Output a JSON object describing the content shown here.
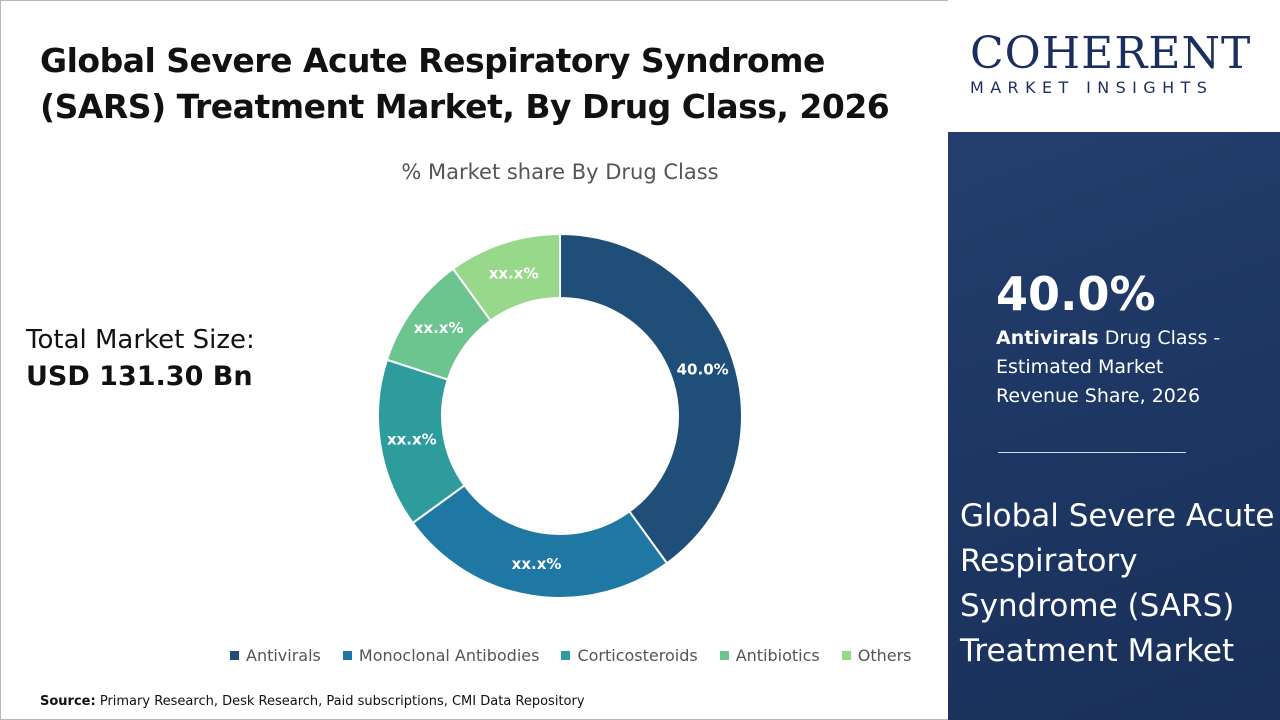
{
  "title": "Global Severe Acute Respiratory Syndrome (SARS) Treatment Market, By Drug Class, 2026",
  "total_market": {
    "label": "Total Market Size:",
    "value": "USD 131.30 Bn"
  },
  "source": {
    "label": "Source:",
    "text": "Primary Research, Desk Research, Paid subscriptions, CMI Data Repository"
  },
  "logo": {
    "name": "COHERENT",
    "tagline": "MARKET INSIGHTS"
  },
  "highlight": {
    "percent": "40.0%",
    "segment": "Antivirals",
    "description": "Drug Class - Estimated Market Revenue Share, 2026",
    "market_name": "Global Severe Acute Respiratory Syndrome (SARS) Treatment Market"
  },
  "chart_data": {
    "type": "pie",
    "donut": true,
    "title": "% Market share By Drug Class",
    "categories": [
      "Antivirals",
      "Monoclonal Antibodies",
      "Corticosteroids",
      "Antibiotics",
      "Others"
    ],
    "values": [
      40,
      25,
      15,
      10,
      10
    ],
    "data_labels": [
      "40.0%",
      "xx.x%",
      "xx.x%",
      "xx.x%",
      "xx.x%"
    ],
    "colors": [
      "#1f4e79",
      "#1f77a3",
      "#2e9c9c",
      "#6cc48e",
      "#97d88a"
    ],
    "legend": "bottom"
  }
}
